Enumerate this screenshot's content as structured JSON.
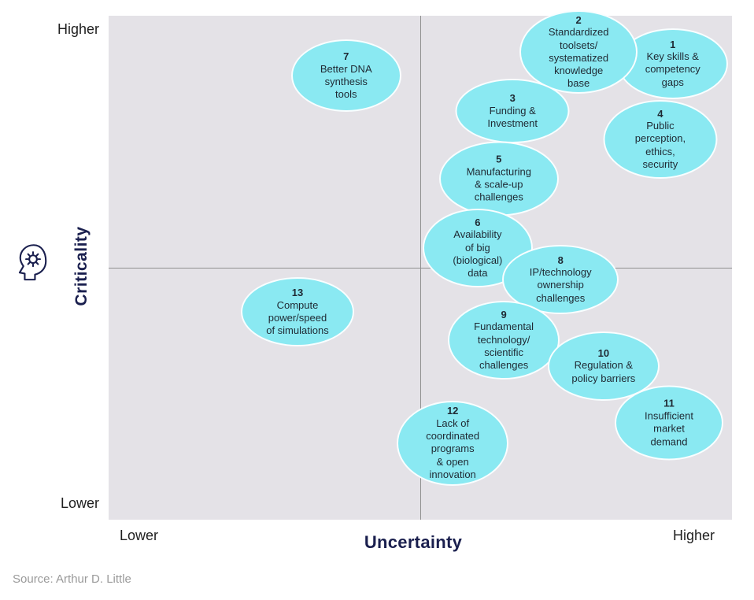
{
  "axes": {
    "y_label": "Criticality",
    "x_label": "Uncertainty",
    "y_top": "Higher",
    "y_bottom": "Lower",
    "x_left": "Lower",
    "x_right": "Higher"
  },
  "source": "Source: Arthur D. Little",
  "icons": {
    "head_gear": "head-gear-icon"
  },
  "colors": {
    "bubble": "#8AE9F2",
    "plot_bg": "#E4E2E7",
    "navy": "#1A1F4E",
    "source_text": "#9A9A9A",
    "bubble_text": "#1F2933",
    "midline": "#8F8F8F"
  },
  "chart_data": {
    "type": "scatter",
    "title": "",
    "xlabel": "Uncertainty",
    "ylabel": "Criticality",
    "x_range_labels": [
      "Lower",
      "Higher"
    ],
    "y_range_labels": [
      "Lower",
      "Higher"
    ],
    "quadrant_midlines": {
      "x": 0.5,
      "y": 0.5
    },
    "grid": false,
    "legend": false,
    "points": [
      {
        "id": 1,
        "label": "Key skills &\ncompetency\ngaps",
        "x": 0.905,
        "y": 0.905,
        "w": 140,
        "h": 90
      },
      {
        "id": 2,
        "label": "Standardized\ntoolsets/\nsystematized\nknowledge\nbase",
        "x": 0.754,
        "y": 0.928,
        "w": 150,
        "h": 106
      },
      {
        "id": 3,
        "label": "Funding &\nInvestment",
        "x": 0.648,
        "y": 0.811,
        "w": 145,
        "h": 82
      },
      {
        "id": 4,
        "label": "Public\nperception,\nethics,\nsecurity",
        "x": 0.885,
        "y": 0.755,
        "w": 145,
        "h": 100
      },
      {
        "id": 5,
        "label": "Manufacturing\n& scale-up\nchallenges",
        "x": 0.626,
        "y": 0.677,
        "w": 152,
        "h": 95
      },
      {
        "id": 6,
        "label": "Availability\nof big\n(biological)\ndata",
        "x": 0.592,
        "y": 0.539,
        "w": 140,
        "h": 100
      },
      {
        "id": 7,
        "label": "Better DNA\nsynthesis\ntools",
        "x": 0.381,
        "y": 0.881,
        "w": 140,
        "h": 92
      },
      {
        "id": 8,
        "label": "IP/technology\nownership\nchallenges",
        "x": 0.725,
        "y": 0.477,
        "w": 148,
        "h": 88
      },
      {
        "id": 9,
        "label": "Fundamental\ntechnology/\nscientific\nchallenges",
        "x": 0.634,
        "y": 0.356,
        "w": 142,
        "h": 100
      },
      {
        "id": 10,
        "label": "Regulation &\npolicy barriers",
        "x": 0.794,
        "y": 0.305,
        "w": 142,
        "h": 88
      },
      {
        "id": 11,
        "label": "Insufficient\nmarket\ndemand",
        "x": 0.899,
        "y": 0.192,
        "w": 138,
        "h": 95
      },
      {
        "id": 12,
        "label": "Lack of\ncoordinated\nprograms\n& open\ninnovation",
        "x": 0.552,
        "y": 0.152,
        "w": 142,
        "h": 108
      },
      {
        "id": 13,
        "label": "Compute\npower/speed\nof simulations",
        "x": 0.303,
        "y": 0.412,
        "w": 144,
        "h": 88
      }
    ]
  }
}
